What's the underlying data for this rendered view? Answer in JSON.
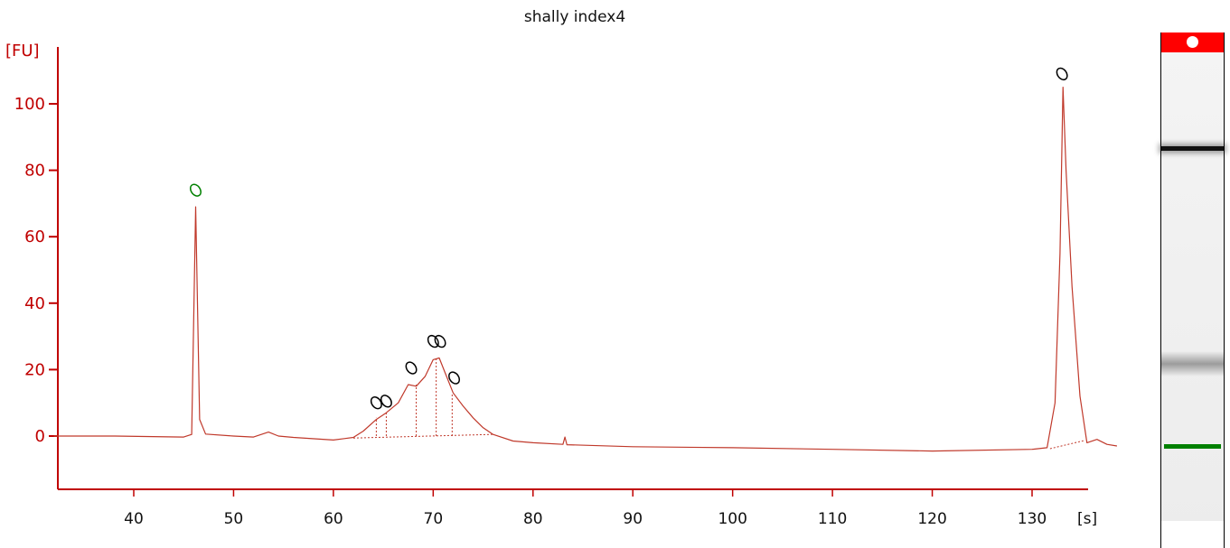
{
  "chart_data": {
    "type": "line",
    "title": "shally index4",
    "ylabel": "[FU]",
    "xlabel": "[s]",
    "xlim": [
      32,
      138.5
    ],
    "ylim": [
      -16,
      118
    ],
    "x_ticks": [
      40,
      50,
      60,
      70,
      80,
      90,
      100,
      110,
      120,
      130
    ],
    "x_tick_labels": [
      "40",
      "50",
      "60",
      "70",
      "80",
      "90",
      "100",
      "110",
      "120",
      "130"
    ],
    "y_ticks": [
      0,
      20,
      40,
      60,
      80,
      100
    ],
    "y_tick_labels": [
      "0",
      "20",
      "40",
      "60",
      "80",
      "100"
    ],
    "grid": false,
    "series": [
      {
        "color": "#c0392b",
        "points": [
          [
            32,
            0
          ],
          [
            38,
            0
          ],
          [
            45,
            -0.3
          ],
          [
            45.8,
            0.5
          ],
          [
            46.2,
            69
          ],
          [
            46.6,
            5
          ],
          [
            47.2,
            0.6
          ],
          [
            50,
            0
          ],
          [
            52,
            -0.3
          ],
          [
            53.5,
            1.2
          ],
          [
            54.5,
            0
          ],
          [
            56,
            -0.4
          ],
          [
            60,
            -1.2
          ],
          [
            62,
            -0.4
          ],
          [
            63,
            1.5
          ],
          [
            64.3,
            5
          ],
          [
            65.3,
            7
          ],
          [
            66.5,
            10
          ],
          [
            67.5,
            15.5
          ],
          [
            68.3,
            15
          ],
          [
            69.2,
            18
          ],
          [
            70,
            23
          ],
          [
            70.6,
            23.5
          ],
          [
            71.2,
            19
          ],
          [
            72,
            13
          ],
          [
            73,
            9
          ],
          [
            74,
            5.5
          ],
          [
            75,
            2.5
          ],
          [
            76,
            0.5
          ],
          [
            78,
            -1.5
          ],
          [
            80,
            -2
          ],
          [
            83,
            -2.5
          ],
          [
            83.2,
            -0.3
          ],
          [
            83.4,
            -2.6
          ],
          [
            90,
            -3.2
          ],
          [
            100,
            -3.5
          ],
          [
            110,
            -4
          ],
          [
            120,
            -4.5
          ],
          [
            130,
            -4
          ],
          [
            131.5,
            -3.5
          ],
          [
            132.3,
            10
          ],
          [
            132.8,
            55
          ],
          [
            133.1,
            105
          ],
          [
            133.4,
            80
          ],
          [
            134,
            45
          ],
          [
            134.8,
            12
          ],
          [
            135.5,
            -2
          ],
          [
            136.5,
            -1
          ],
          [
            137.5,
            -2.5
          ],
          [
            138.5,
            -3
          ]
        ]
      }
    ],
    "baselines": [
      [
        [
          62,
          -0.6
        ],
        [
          76,
          0.5
        ]
      ],
      [
        [
          131.8,
          -3.8
        ],
        [
          135.3,
          -1.3
        ]
      ]
    ],
    "peak_dividers": [
      [
        64.3,
        5.5
      ],
      [
        65.3,
        7
      ],
      [
        68.3,
        15.5
      ],
      [
        70.3,
        23.5
      ],
      [
        71.9,
        13
      ]
    ],
    "peak_markers": [
      {
        "x": 46.2,
        "y": 74,
        "color": "#008000"
      },
      {
        "x": 64.3,
        "y": 10,
        "color": "#000000"
      },
      {
        "x": 65.3,
        "y": 10.5,
        "color": "#000000"
      },
      {
        "x": 67.8,
        "y": 20.5,
        "color": "#000000"
      },
      {
        "x": 70.0,
        "y": 28.5,
        "color": "#000000"
      },
      {
        "x": 70.7,
        "y": 28.5,
        "color": "#000000"
      },
      {
        "x": 72.1,
        "y": 17.5,
        "color": "#000000"
      },
      {
        "x": 133.0,
        "y": 109,
        "color": "#000000"
      }
    ],
    "gel_lane": {
      "header_color": "#ff0000",
      "bands": [
        {
          "position": 0.205,
          "color": "#111111",
          "intensity": 1.0
        },
        {
          "position": 0.665,
          "color": "#555555",
          "intensity": 0.6
        },
        {
          "position": 0.84,
          "color": "#008000",
          "intensity": 1.0
        }
      ]
    }
  }
}
